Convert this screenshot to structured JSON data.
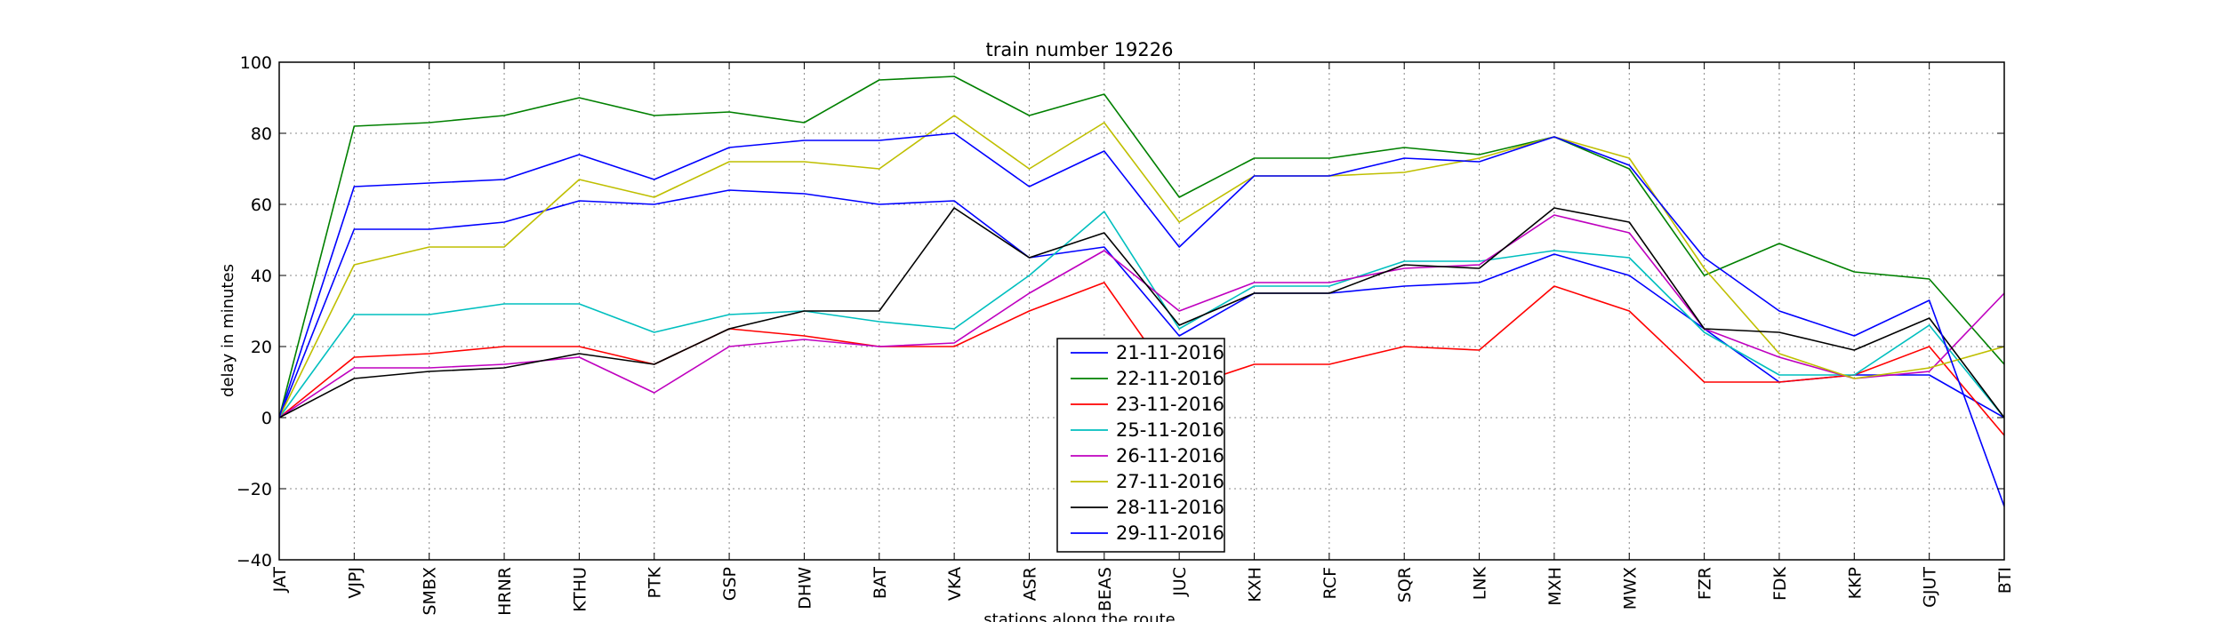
{
  "chart_data": {
    "type": "line",
    "title": "train number 19226",
    "xlabel": "stations along the route",
    "ylabel": "delay in minutes",
    "ylim": [
      -40,
      100
    ],
    "yticks": [
      "−40",
      "−20",
      "0",
      "20",
      "40",
      "60",
      "80",
      "100"
    ],
    "grid": true,
    "legend_position": "lower-center",
    "categories": [
      "JAT",
      "VJPJ",
      "SMBX",
      "HRNR",
      "KTHU",
      "PTK",
      "GSP",
      "DHW",
      "BAT",
      "VKA",
      "ASR",
      "BEAS",
      "JUC",
      "KXH",
      "RCF",
      "SQR",
      "LNK",
      "MXH",
      "MWX",
      "FZR",
      "FDK",
      "KKP",
      "GJUT",
      "BTI"
    ],
    "series": [
      {
        "name": "21-11-2016",
        "color": "#0000ff",
        "values": [
          0,
          53,
          53,
          55,
          61,
          60,
          64,
          63,
          60,
          61,
          45,
          48,
          23,
          35,
          35,
          37,
          38,
          46,
          40,
          25,
          10,
          12,
          12,
          0
        ]
      },
      {
        "name": "22-11-2016",
        "color": "#008000",
        "values": [
          0,
          82,
          83,
          85,
          90,
          85,
          86,
          83,
          95,
          96,
          85,
          91,
          62,
          73,
          73,
          76,
          74,
          79,
          70,
          40,
          49,
          41,
          39,
          15
        ]
      },
      {
        "name": "23-11-2016",
        "color": "#ff0000",
        "values": [
          0,
          17,
          18,
          20,
          20,
          15,
          25,
          23,
          20,
          20,
          30,
          38,
          8,
          15,
          15,
          20,
          19,
          37,
          30,
          10,
          10,
          12,
          20,
          -5
        ]
      },
      {
        "name": "25-11-2016",
        "color": "#00bfbf",
        "values": [
          0,
          29,
          29,
          32,
          32,
          24,
          29,
          30,
          27,
          25,
          40,
          58,
          25,
          37,
          37,
          44,
          44,
          47,
          45,
          24,
          12,
          12,
          26,
          0
        ]
      },
      {
        "name": "26-11-2016",
        "color": "#bf00bf",
        "values": [
          0,
          14,
          14,
          15,
          17,
          7,
          20,
          22,
          20,
          21,
          35,
          47,
          30,
          38,
          38,
          42,
          43,
          57,
          52,
          25,
          17,
          11,
          13,
          35
        ]
      },
      {
        "name": "27-11-2016",
        "color": "#bfbf00",
        "values": [
          0,
          43,
          48,
          48,
          67,
          62,
          72,
          72,
          70,
          85,
          70,
          83,
          55,
          68,
          68,
          69,
          73,
          79,
          73,
          42,
          18,
          11,
          14,
          20
        ]
      },
      {
        "name": "28-11-2016",
        "color": "#000000",
        "values": [
          0,
          11,
          13,
          14,
          18,
          15,
          25,
          30,
          30,
          59,
          45,
          52,
          26,
          35,
          35,
          43,
          42,
          59,
          55,
          25,
          24,
          19,
          28,
          0
        ]
      },
      {
        "name": "29-11-2016",
        "color": "#0000ff",
        "values": [
          0,
          65,
          66,
          67,
          74,
          67,
          76,
          78,
          78,
          80,
          65,
          75,
          48,
          68,
          68,
          73,
          72,
          79,
          71,
          45,
          30,
          23,
          33,
          -25
        ]
      }
    ]
  }
}
